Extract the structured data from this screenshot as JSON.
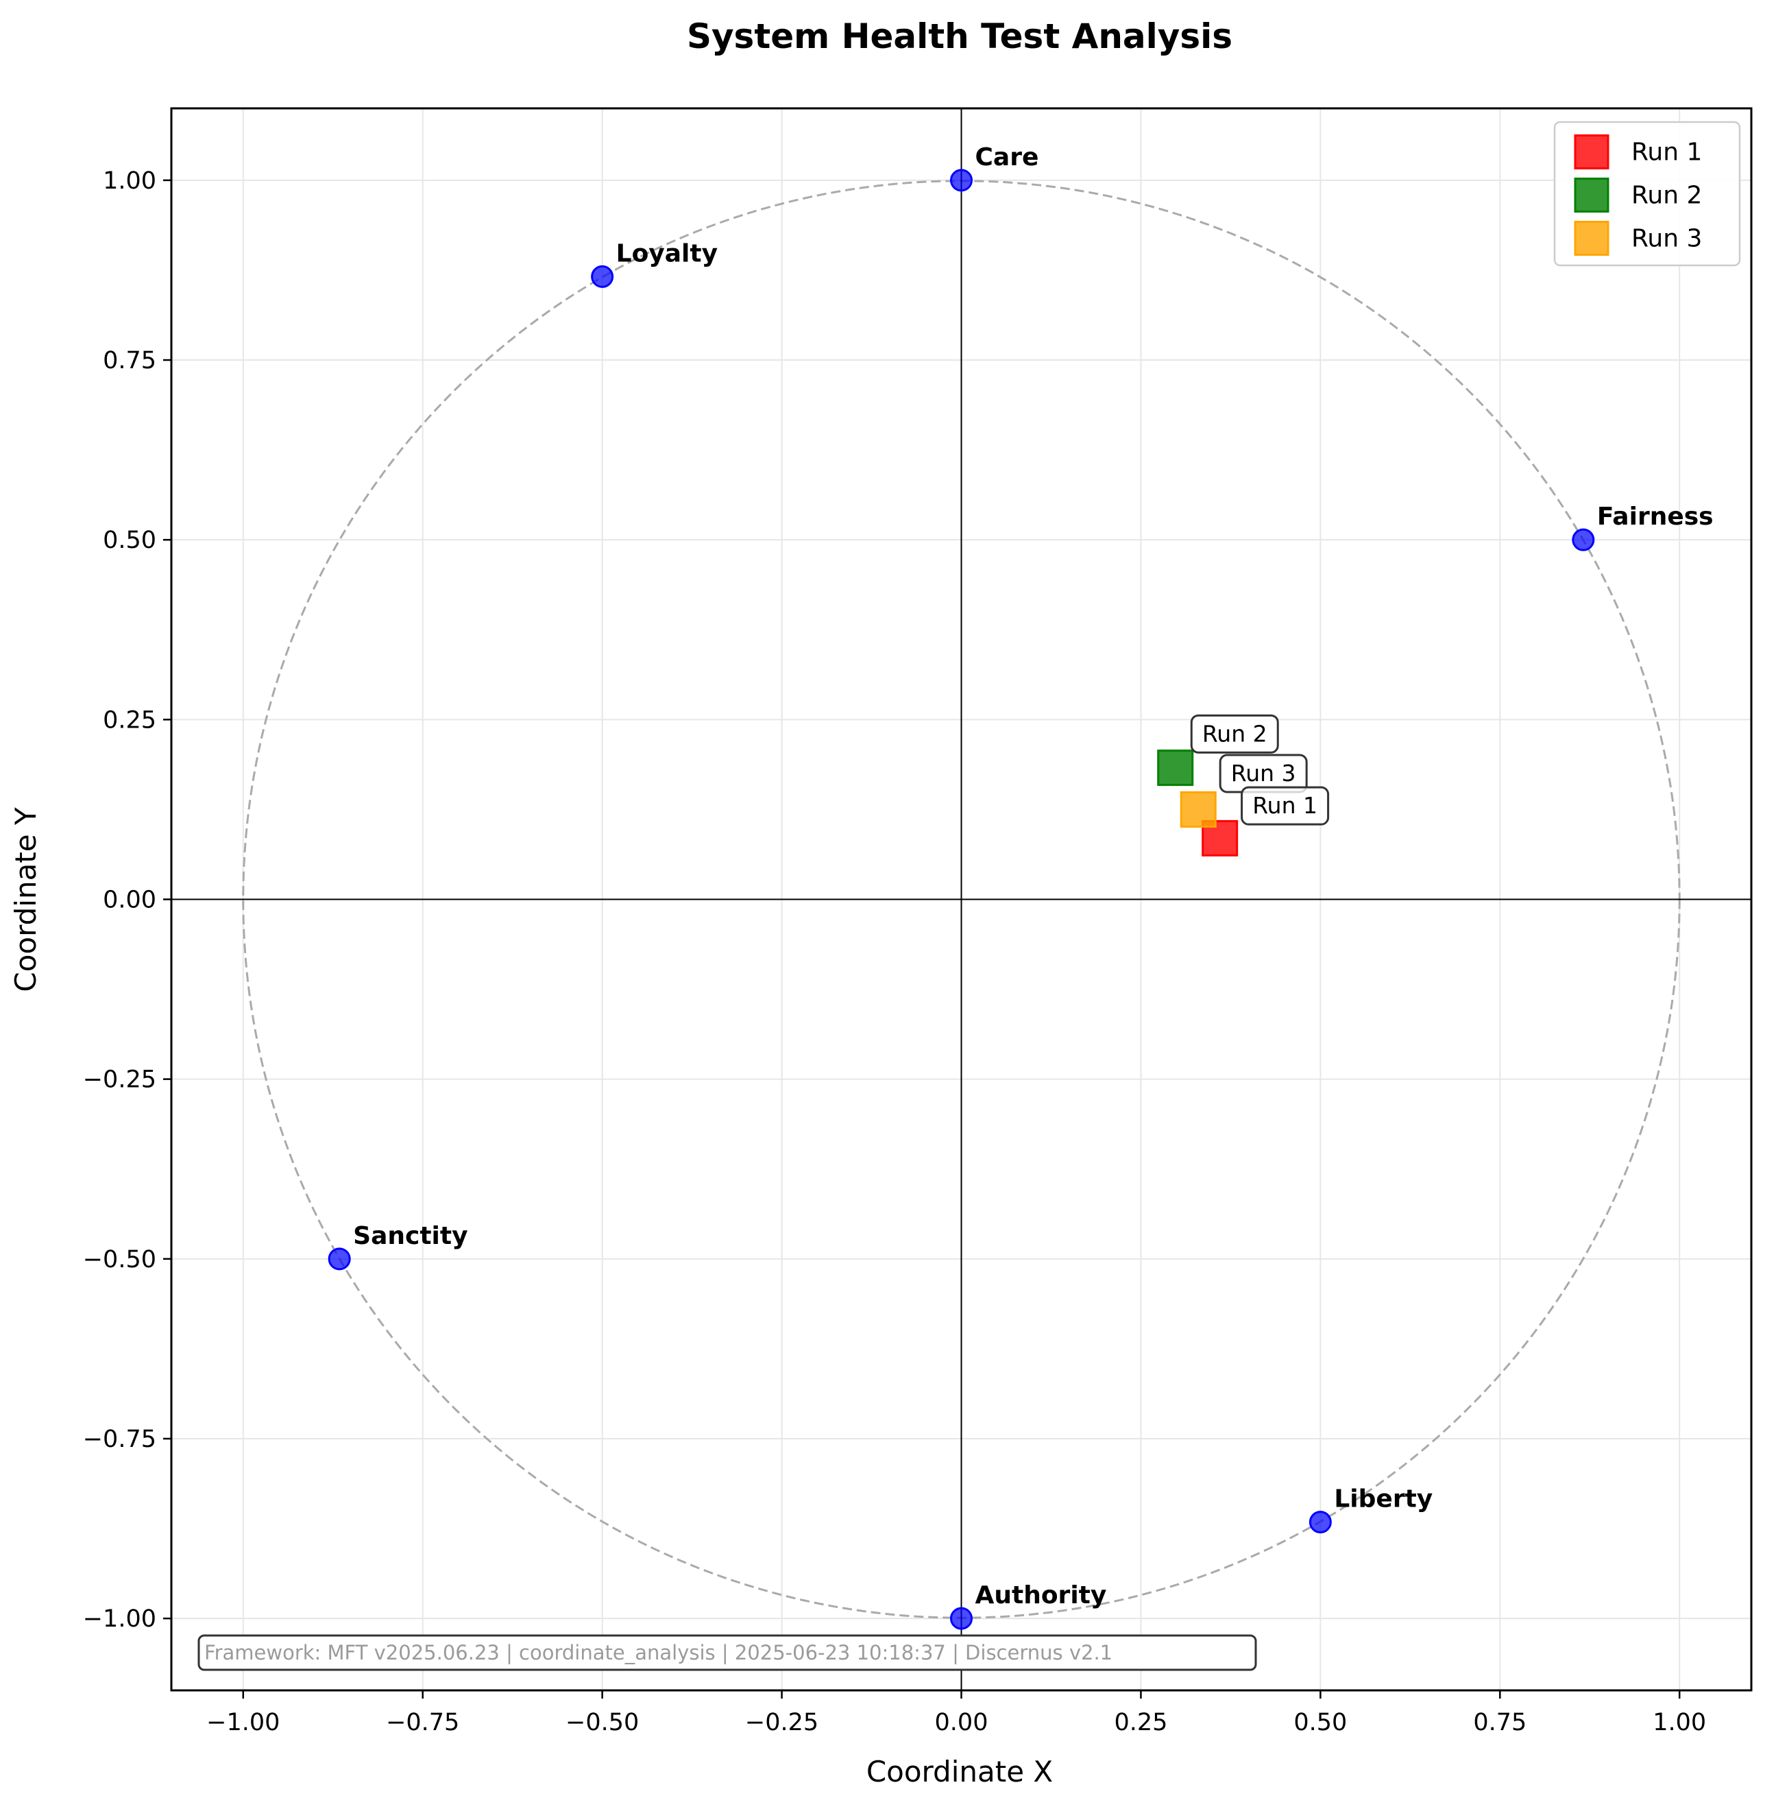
{
  "chart_data": {
    "type": "scatter",
    "title": "System Health Test Analysis",
    "xlabel": "Coordinate X",
    "ylabel": "Coordinate Y",
    "xlim": [
      -1.1,
      1.1
    ],
    "ylim": [
      -1.1,
      1.1
    ],
    "xticks": [
      -1.0,
      -0.75,
      -0.5,
      -0.25,
      0.0,
      0.25,
      0.5,
      0.75,
      1.0
    ],
    "yticks": [
      -1.0,
      -0.75,
      -0.5,
      -0.25,
      0.0,
      0.25,
      0.5,
      0.75,
      1.0
    ],
    "xtick_labels": [
      "−1.00",
      "−0.75",
      "−0.50",
      "−0.25",
      "0.00",
      "0.25",
      "0.50",
      "0.75",
      "1.00"
    ],
    "ytick_labels": [
      "−1.00",
      "−0.75",
      "−0.50",
      "−0.25",
      "0.00",
      "0.25",
      "0.50",
      "0.75",
      "1.00"
    ],
    "grid": true,
    "unit_circle": true,
    "legend_position": "top-right",
    "anchors": [
      {
        "label": "Care",
        "x": 0.0,
        "y": 1.0
      },
      {
        "label": "Loyalty",
        "x": -0.5,
        "y": 0.866
      },
      {
        "label": "Fairness",
        "x": 0.866,
        "y": 0.5
      },
      {
        "label": "Sanctity",
        "x": -0.866,
        "y": -0.5
      },
      {
        "label": "Liberty",
        "x": 0.5,
        "y": -0.866
      },
      {
        "label": "Authority",
        "x": 0.0,
        "y": -1.0
      }
    ],
    "anchor_color": "#0000ff",
    "series": [
      {
        "name": "Run 1",
        "x": 0.36,
        "y": 0.085,
        "color": "#ff0000"
      },
      {
        "name": "Run 2",
        "x": 0.298,
        "y": 0.183,
        "color": "#008000"
      },
      {
        "name": "Run 3",
        "x": 0.33,
        "y": 0.125,
        "color": "#ffa500"
      }
    ],
    "annotations": [
      {
        "text": "Run 2",
        "x": 0.33,
        "y": 0.23
      },
      {
        "text": "Run 3",
        "x": 0.37,
        "y": 0.175
      },
      {
        "text": "Run 1",
        "x": 0.4,
        "y": 0.13
      }
    ],
    "footer": "Framework: MFT v2025.06.23 | coordinate_analysis | 2025-06-23 10:18:37 | Discernus v2.1"
  }
}
